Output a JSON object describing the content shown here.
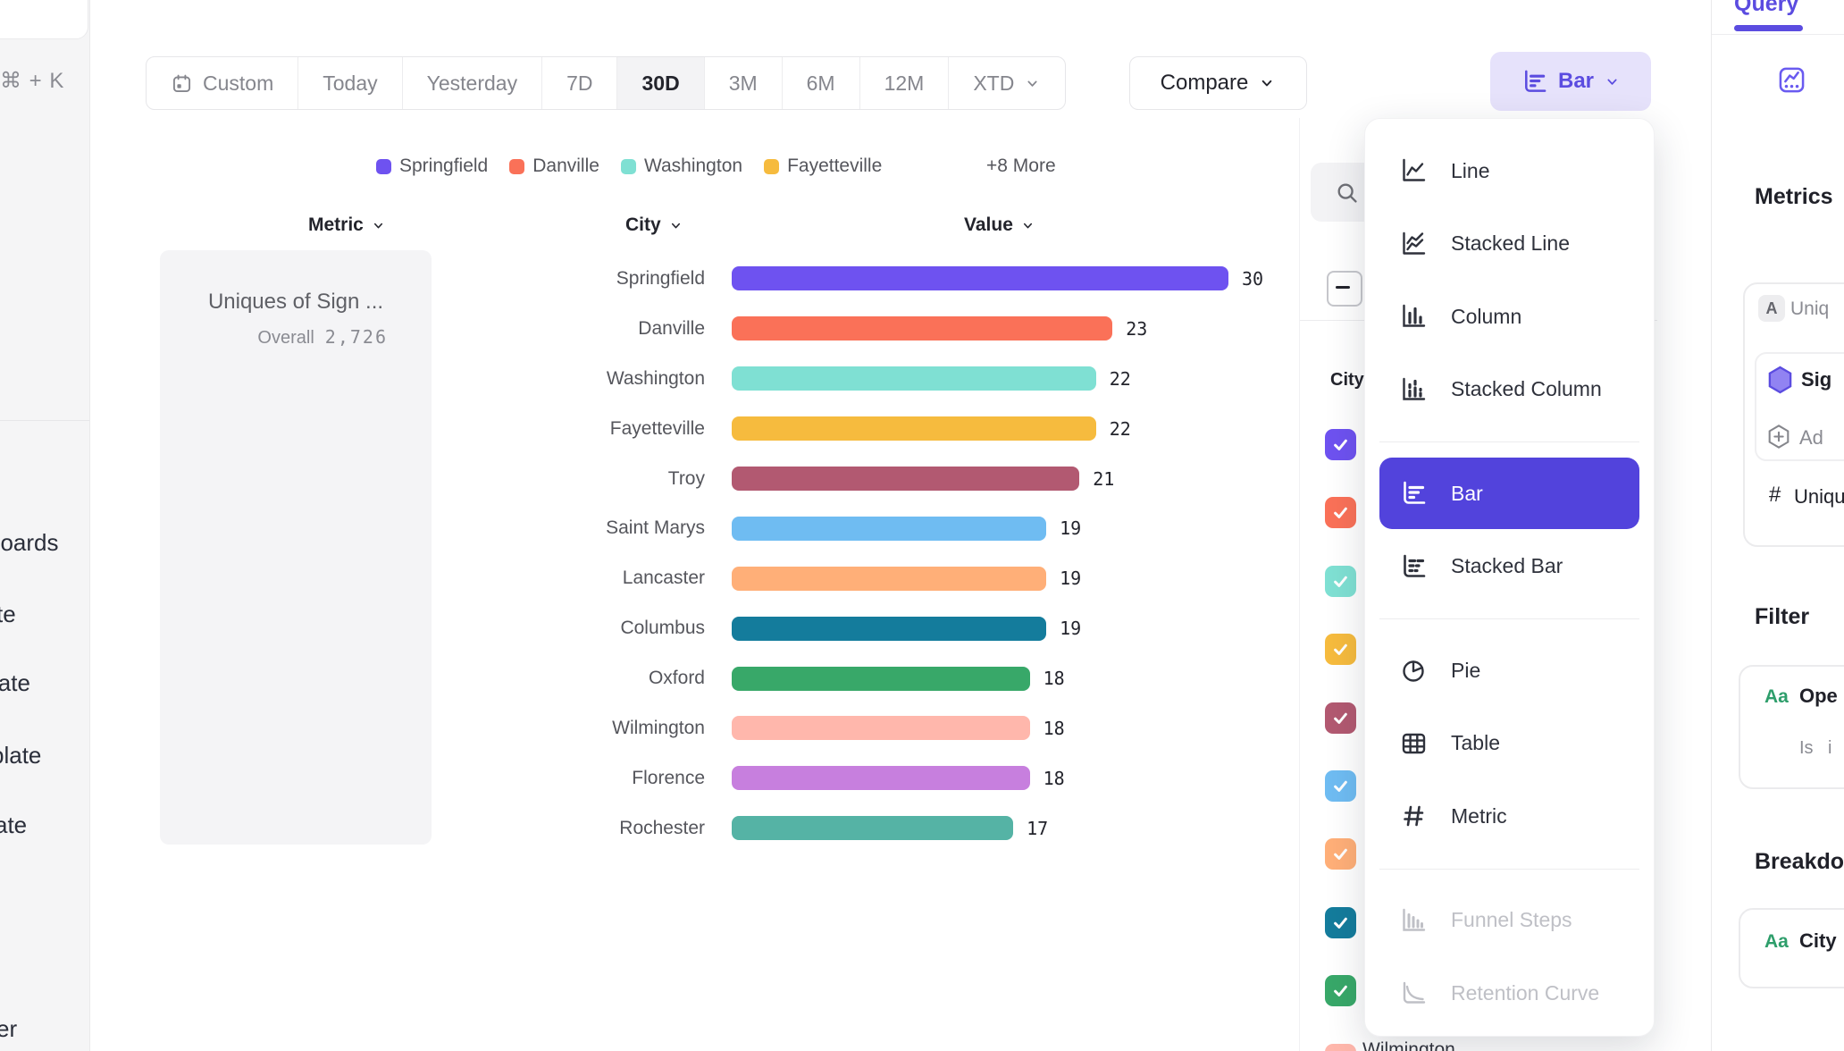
{
  "colors": {
    "accent": "#5B4CE0",
    "accent_light_bg": "#E6E2FB",
    "menu_selected_bg": "#5243DC",
    "green_property_badge": "#2E9E6B"
  },
  "left_nav": {
    "shortcut": "⌘ + K",
    "clipped_items": [
      {
        "label": "boards"
      },
      {
        "label": "te"
      },
      {
        "label": "late"
      },
      {
        "label": "plate"
      },
      {
        "label": "ate"
      },
      {
        "label": "er"
      }
    ]
  },
  "toolbar": {
    "date_ranges": [
      {
        "label": "Custom",
        "calendar_icon": true
      },
      {
        "label": "Today"
      },
      {
        "label": "Yesterday"
      },
      {
        "label": "7D"
      },
      {
        "label": "30D",
        "selected": true
      },
      {
        "label": "3M"
      },
      {
        "label": "6M"
      },
      {
        "label": "12M"
      },
      {
        "label": "XTD",
        "chevron": true
      }
    ],
    "compare_label": "Compare",
    "chart_type_button_label": "Bar"
  },
  "legend": {
    "items": [
      {
        "label": "Springfield",
        "color": "#6E52F0"
      },
      {
        "label": "Danville",
        "color": "#FA7158"
      },
      {
        "label": "Washington",
        "color": "#7FE0D3"
      },
      {
        "label": "Fayetteville",
        "color": "#F6BB3E"
      }
    ],
    "more_label": "+8 More"
  },
  "columns": {
    "metric": "Metric",
    "city": "City",
    "value": "Value"
  },
  "metric_panel": {
    "title": "Uniques of Sign ...",
    "overall_label": "Overall",
    "overall_value": "2,726"
  },
  "chart_data": {
    "type": "bar",
    "orientation": "horizontal",
    "title": "Uniques of Sign ...",
    "overall_total": 2726,
    "categories": [
      "Springfield",
      "Danville",
      "Washington",
      "Fayetteville",
      "Troy",
      "Saint Marys",
      "Lancaster",
      "Columbus",
      "Oxford",
      "Wilmington",
      "Florence",
      "Rochester"
    ],
    "values": [
      30,
      23,
      22,
      22,
      21,
      19,
      19,
      19,
      18,
      18,
      18,
      17
    ],
    "colors": [
      "#6E52F0",
      "#FA7158",
      "#7FE0D3",
      "#F6BB3E",
      "#B25971",
      "#6FBCF2",
      "#FFAF78",
      "#147C9C",
      "#38A869",
      "#FFB7AC",
      "#C77FDE",
      "#55B3A5"
    ],
    "xlim": [
      0,
      30
    ],
    "value_labels_shown": true,
    "grid": false,
    "legend_position": "top"
  },
  "breakdown_panel": {
    "column_label": "City",
    "select_all_state": "indeterminate",
    "checkboxes": [
      {
        "city": "Springfield",
        "color": "#6E52F0",
        "checked": true
      },
      {
        "city": "Danville",
        "color": "#FA7158",
        "checked": true
      },
      {
        "city": "Washington",
        "color": "#7FE0D3",
        "checked": true
      },
      {
        "city": "Fayetteville",
        "color": "#F6BB3E",
        "checked": true
      },
      {
        "city": "Troy",
        "color": "#B25971",
        "checked": true
      },
      {
        "city": "Saint Marys",
        "color": "#6FBCF2",
        "checked": true
      },
      {
        "city": "Lancaster",
        "color": "#FFAF78",
        "checked": true
      },
      {
        "city": "Columbus",
        "color": "#147C9C",
        "checked": true
      },
      {
        "city": "Oxford",
        "color": "#38A869",
        "checked": true
      },
      {
        "city": "Wilmington",
        "color": "#FFB7AC",
        "checked": true
      }
    ],
    "partial_row_label": "Wilmington"
  },
  "chart_menu": {
    "selected": "Bar",
    "items": [
      {
        "label": "Line",
        "icon": "line"
      },
      {
        "label": "Stacked Line",
        "icon": "stacked-line"
      },
      {
        "label": "Column",
        "icon": "column"
      },
      {
        "label": "Stacked Column",
        "icon": "stacked-column",
        "divider_after": true
      },
      {
        "label": "Bar",
        "icon": "bar",
        "selected": true
      },
      {
        "label": "Stacked Bar",
        "icon": "stacked-bar",
        "divider_after": true
      },
      {
        "label": "Pie",
        "icon": "pie"
      },
      {
        "label": "Table",
        "icon": "table"
      },
      {
        "label": "Metric",
        "icon": "metric",
        "divider_after": true
      },
      {
        "label": "Funnel Steps",
        "icon": "funnel",
        "disabled": true
      },
      {
        "label": "Retention Curve",
        "icon": "retention",
        "disabled": true
      }
    ]
  },
  "query_panel": {
    "tab_label": "Query",
    "metrics_heading": "Metrics",
    "metric_card": {
      "formula_badge": "A",
      "formula_text": "Uniq",
      "event_name": "Sig",
      "add_label": "Ad",
      "measure_prefix": "#",
      "measure_text": "Uniqu"
    },
    "filter_heading": "Filter",
    "filter_card": {
      "type_badge": "Aa",
      "property": "Ope",
      "operator": "Is",
      "value": "i"
    },
    "breakdown_heading": "Breakdown",
    "breakdown_card": {
      "type_badge": "Aa",
      "property": "City"
    }
  }
}
